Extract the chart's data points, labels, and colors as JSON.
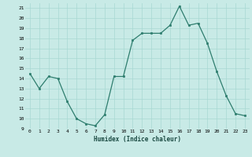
{
  "x": [
    0,
    1,
    2,
    3,
    4,
    5,
    6,
    7,
    8,
    9,
    10,
    11,
    12,
    13,
    14,
    15,
    16,
    17,
    18,
    19,
    20,
    21,
    22,
    23
  ],
  "y": [
    14.5,
    13.0,
    14.2,
    14.0,
    11.7,
    10.0,
    9.5,
    9.3,
    10.4,
    14.2,
    14.2,
    17.8,
    18.5,
    18.5,
    18.5,
    19.3,
    21.2,
    19.3,
    19.5,
    17.5,
    14.7,
    12.3,
    10.5,
    10.3
  ],
  "line_color": "#2e7d6e",
  "marker": "s",
  "marker_size": 2,
  "bg_color": "#c8eae6",
  "grid_color": "#a8d8d2",
  "xlabel": "Humidex (Indice chaleur)",
  "xlim": [
    -0.5,
    23.5
  ],
  "ylim": [
    9,
    21.5
  ],
  "yticks": [
    9,
    10,
    11,
    12,
    13,
    14,
    15,
    16,
    17,
    18,
    19,
    20,
    21
  ],
  "xticks": [
    0,
    1,
    2,
    3,
    4,
    5,
    6,
    7,
    8,
    9,
    10,
    11,
    12,
    13,
    14,
    15,
    16,
    17,
    18,
    19,
    20,
    21,
    22,
    23
  ]
}
